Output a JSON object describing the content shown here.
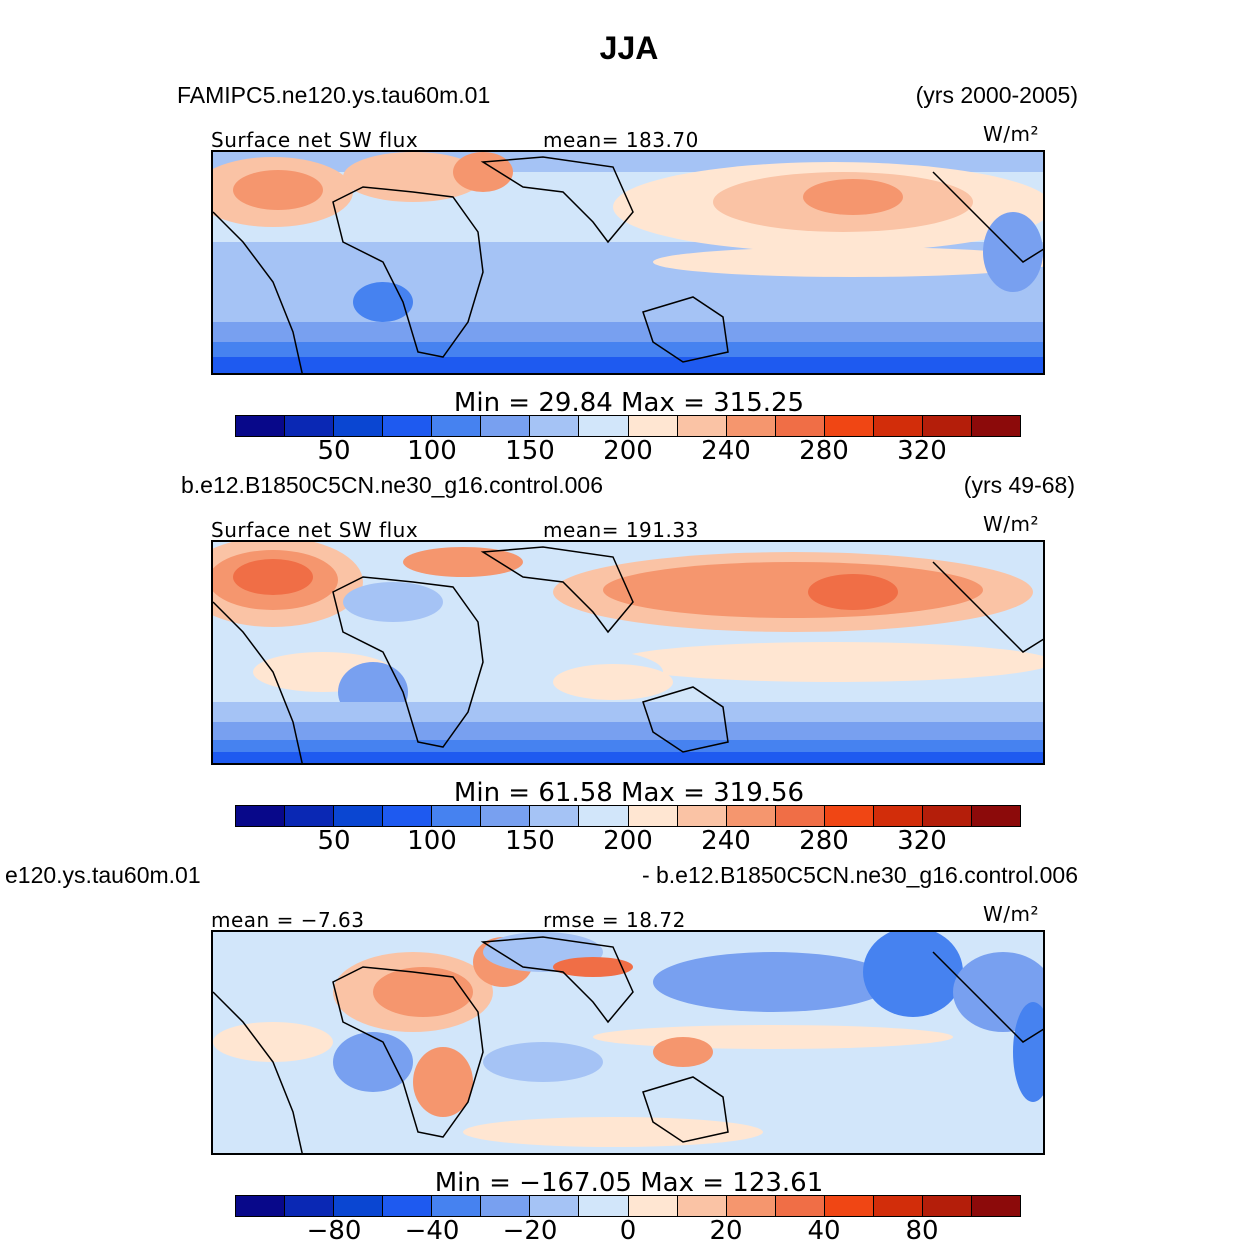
{
  "title": "JJA",
  "colorbar_colors": [
    "#08088a",
    "#0a28b4",
    "#0a46d2",
    "#1e5af0",
    "#4682f0",
    "#78a0f0",
    "#a5c3f5",
    "#d2e6fa",
    "#ffe6d2",
    "#fac3a5",
    "#f5966e",
    "#f06e46",
    "#f04614",
    "#d22d0a",
    "#b41e0a",
    "#8c0a0a"
  ],
  "panels": [
    {
      "case_left": "FAMIPC5.ne120.ys.tau60m.01",
      "case_right": "(yrs 2000-2005)",
      "label_left": "Surface  net  SW  flux",
      "label_mid": "mean=  183.70",
      "units": "W/m²",
      "minmax": "Min  =    29.84  Max  =  315.25",
      "ticks": [
        "50",
        "100",
        "150",
        "200",
        "240",
        "280",
        "320"
      ]
    },
    {
      "case_left": "b.e12.B1850C5CN.ne30_g16.control.006",
      "case_right": "(yrs 49-68)",
      "label_left": "Surface  net  SW  flux",
      "label_mid": "mean=  191.33",
      "units": "W/m²",
      "minmax": "Min  =    61.58  Max  =  319.56",
      "ticks": [
        "50",
        "100",
        "150",
        "200",
        "240",
        "280",
        "320"
      ]
    },
    {
      "case_left": "e120.ys.tau60m.01",
      "case_right": "- b.e12.B1850C5CN.ne30_g16.control.006",
      "label_left": "mean  =    −7.63",
      "label_mid": "rmse  =    18.72",
      "units": "W/m²",
      "minmax": "Min  =  −167.05  Max  =  123.61",
      "ticks": [
        "−80",
        "−40",
        "−20",
        "0",
        "20",
        "40",
        "80"
      ]
    }
  ]
}
